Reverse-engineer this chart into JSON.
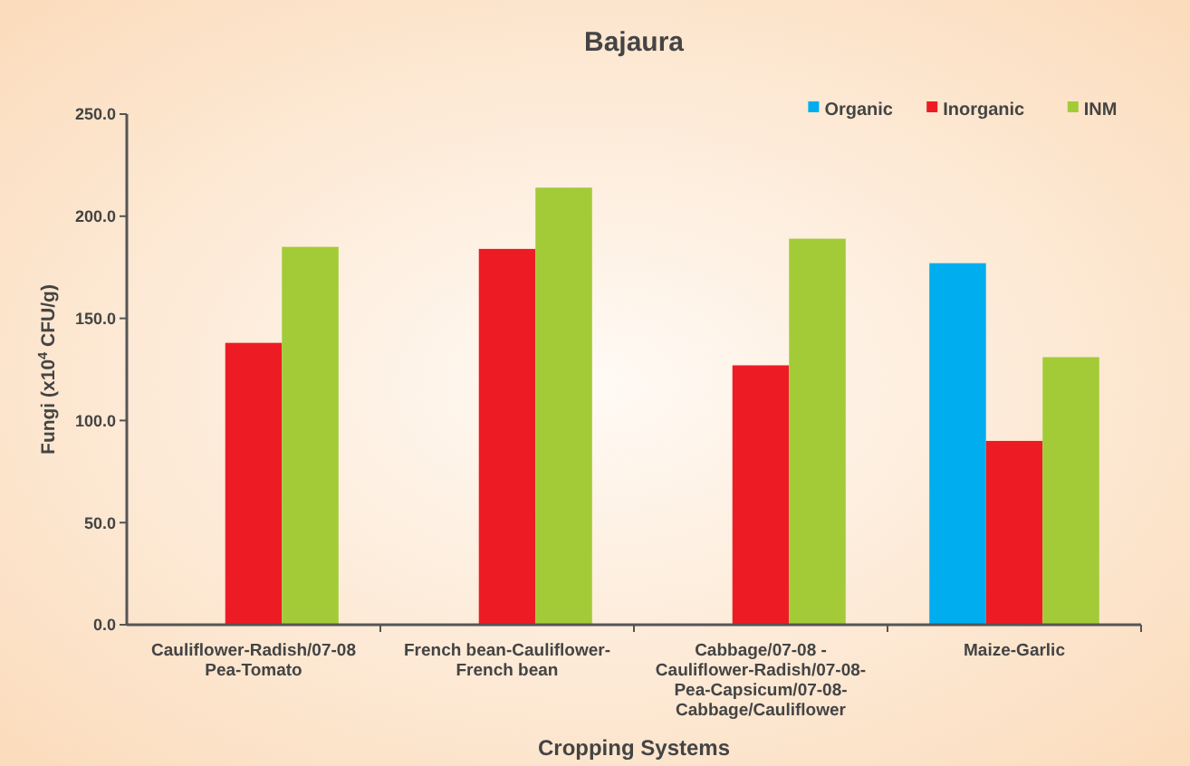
{
  "chart_data": {
    "type": "bar",
    "title": "Bajaura",
    "xlabel": "Cropping Systems",
    "ylabel": "Fungi (x10$^{4}$ CFU/g)",
    "categories": [
      "Cauliflower-Radish/07-08\nPea-Tomato",
      "French bean-Cauliflower-\nFrench bean",
      "Cabbage/07-08 -\nCauliflower-Radish/07-08-\nPea-Capsicum/07-08-\nCabbage/Cauliflower",
      "Maize-Garlic"
    ],
    "series": [
      {
        "name": "Organic",
        "color": "#00aeef",
        "values": [
          null,
          null,
          null,
          177
        ]
      },
      {
        "name": "Inorganic",
        "color": "#ed1c24",
        "values": [
          138,
          184,
          127,
          90
        ]
      },
      {
        "name": "INM",
        "color": "#a3cb38",
        "values": [
          185,
          214,
          189,
          131
        ]
      }
    ],
    "ylim": [
      0,
      250
    ],
    "yticks": [
      {
        "value": 0,
        "label": "0.0"
      },
      {
        "value": 50,
        "label": "50.0"
      },
      {
        "value": 100,
        "label": "100.0"
      },
      {
        "value": 150,
        "label": "150.0"
      },
      {
        "value": 200,
        "label": "200.0"
      },
      {
        "value": 250,
        "label": "250.0"
      }
    ],
    "grid": false,
    "legend": "top right"
  }
}
